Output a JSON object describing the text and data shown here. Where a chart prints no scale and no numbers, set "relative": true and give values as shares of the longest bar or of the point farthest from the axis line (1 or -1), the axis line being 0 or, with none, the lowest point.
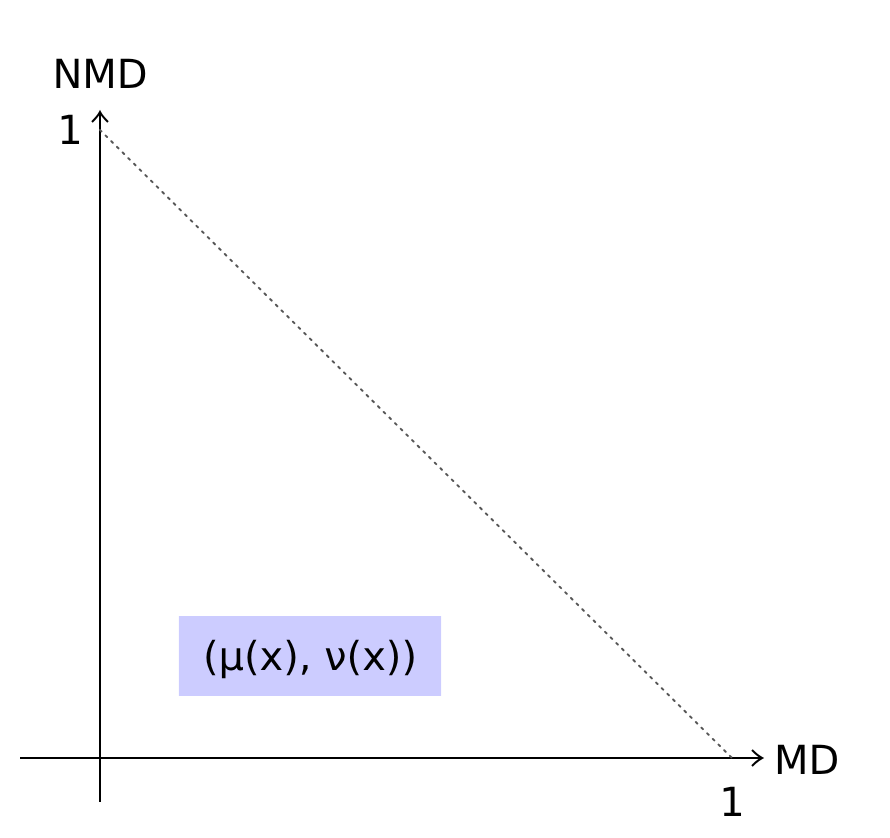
{
  "chart_data": {
    "type": "line",
    "relative": true,
    "xlabel": "MD",
    "ylabel": "NMD",
    "categories": [
      null,
      null
    ],
    "line_style": "dotted",
    "grid": false,
    "series": [
      {
        "values": [
          1,
          0
        ],
        "color": "#555555"
      }
    ],
    "annotations": [
      "(μ(x), ν(x))",
      "1",
      "1"
    ]
  }
}
